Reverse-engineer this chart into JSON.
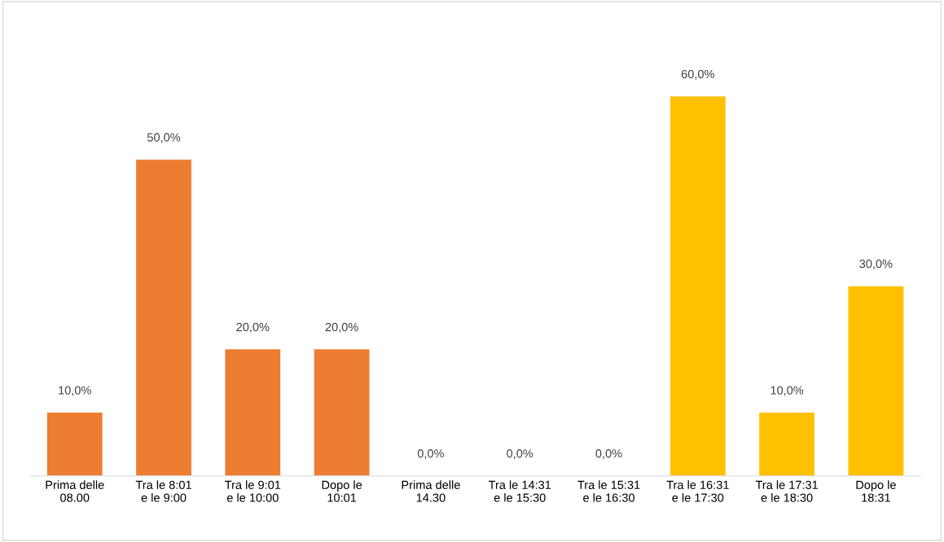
{
  "chart_data": {
    "type": "bar",
    "categories": [
      "Prima delle\n08.00",
      "Tra le 8:01\ne le 9:00",
      "Tra le 9:01\ne le 10:00",
      "Dopo le\n10:01",
      "Prima delle\n14.30",
      "Tra le 14:31\ne le 15:30",
      "Tra le 15:31\ne le 16:30",
      "Tra le 16:31\ne le 17:30",
      "Tra le 17:31\ne le 18:30",
      "Dopo le\n18:31"
    ],
    "values": [
      10,
      50,
      20,
      20,
      0,
      0,
      0,
      60,
      10,
      30
    ],
    "value_labels": [
      "10,0%",
      "50,0%",
      "20,0%",
      "20,0%",
      "0,0%",
      "0,0%",
      "0,0%",
      "60,0%",
      "10,0%",
      "30,0%"
    ],
    "colors": [
      "#ed7d31",
      "#ed7d31",
      "#ed7d31",
      "#ed7d31",
      "#ffc000",
      "#ffc000",
      "#ffc000",
      "#ffc000",
      "#ffc000",
      "#ffc000"
    ]
  }
}
